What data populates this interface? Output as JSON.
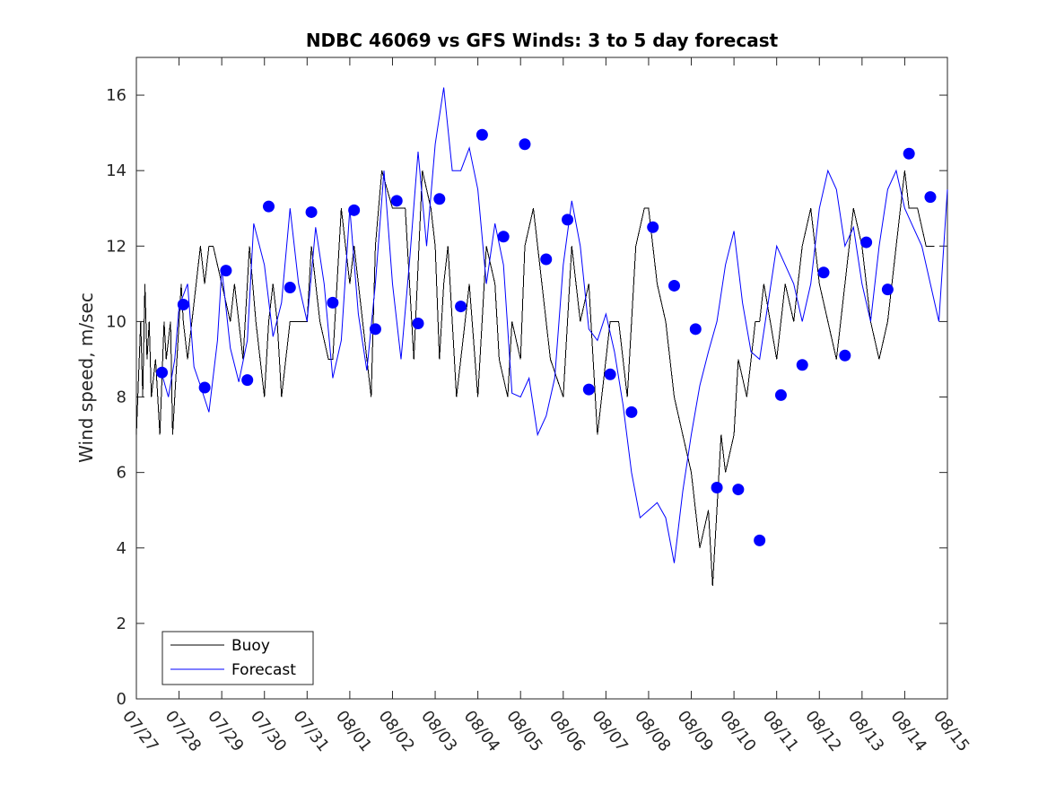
{
  "chart_data": {
    "type": "line",
    "title": "NDBC 46069 vs GFS Winds: 3 to 5 day forecast",
    "xlabel": "",
    "ylabel": "Wind speed, m/sec",
    "xlim": [
      0,
      19
    ],
    "ylim": [
      0,
      17
    ],
    "x_tick_labels": [
      "07/27",
      "07/28",
      "07/29",
      "07/30",
      "07/31",
      "08/01",
      "08/02",
      "08/03",
      "08/04",
      "08/05",
      "08/06",
      "08/07",
      "08/08",
      "08/09",
      "08/10",
      "08/11",
      "08/12",
      "08/13",
      "08/14",
      "08/15"
    ],
    "y_ticks": [
      0,
      2,
      4,
      6,
      8,
      10,
      12,
      14,
      16
    ],
    "grid": false,
    "legend_position": "bottom-left",
    "colors": {
      "buoy": "#000000",
      "forecast": "#0000ff",
      "markers": "#0000ff"
    },
    "series": [
      {
        "name": "Buoy",
        "color": "#000000",
        "x": [
          0,
          0.1,
          0.15,
          0.2,
          0.25,
          0.3,
          0.35,
          0.45,
          0.5,
          0.55,
          0.65,
          0.7,
          0.8,
          0.85,
          0.95,
          1.05,
          1.1,
          1.2,
          1.3,
          1.5,
          1.6,
          1.7,
          1.8,
          2.0,
          2.2,
          2.3,
          2.5,
          2.65,
          2.8,
          3.0,
          3.1,
          3.2,
          3.3,
          3.4,
          3.6,
          3.8,
          4.0,
          4.1,
          4.3,
          4.5,
          4.6,
          4.8,
          5.0,
          5.1,
          5.3,
          5.5,
          5.6,
          5.75,
          6.0,
          6.3,
          6.5,
          6.7,
          6.9,
          7.0,
          7.1,
          7.2,
          7.3,
          7.4,
          7.5,
          7.7,
          7.8,
          8.0,
          8.2,
          8.4,
          8.5,
          8.7,
          8.8,
          9.0,
          9.1,
          9.3,
          9.5,
          9.7,
          10.0,
          10.2,
          10.4,
          10.6,
          10.8,
          11.0,
          11.1,
          11.3,
          11.5,
          11.7,
          11.9,
          12.0,
          12.2,
          12.4,
          12.6,
          12.8,
          13.0,
          13.2,
          13.4,
          13.5,
          13.7,
          13.8,
          14.0,
          14.1,
          14.3,
          14.5,
          14.6,
          14.7,
          15.0,
          15.2,
          15.4,
          15.6,
          15.8,
          16.0,
          16.2,
          16.4,
          16.6,
          16.8,
          17.0,
          17.2,
          17.4,
          17.6,
          17.8,
          18.0,
          18.1,
          18.3,
          18.5,
          18.7
        ],
        "y": [
          7,
          10,
          8,
          11,
          9,
          10,
          8,
          9,
          8,
          7,
          10,
          9,
          10,
          7,
          9,
          11,
          10,
          9,
          10,
          12,
          11,
          12,
          12,
          11,
          10,
          11,
          9,
          12,
          10,
          8,
          10,
          11,
          10,
          8,
          10,
          10,
          10,
          12,
          10,
          9,
          9,
          13,
          11,
          12,
          10,
          8,
          12,
          14,
          13,
          13,
          9,
          14,
          13,
          12,
          9,
          11,
          12,
          10,
          8,
          10,
          11,
          8,
          12,
          11,
          9,
          8,
          10,
          9,
          12,
          13,
          11,
          9,
          8,
          12,
          10,
          11,
          7,
          9,
          10,
          10,
          8,
          12,
          13,
          13,
          11,
          10,
          8,
          7,
          6,
          4,
          5,
          3,
          7,
          6,
          7,
          9,
          8,
          10,
          10,
          11,
          9,
          11,
          10,
          12,
          13,
          11,
          10,
          9,
          11,
          13,
          12,
          10,
          9,
          10,
          12,
          14,
          13,
          13,
          12,
          12
        ]
      },
      {
        "name": "Forecast",
        "color": "#0000ff",
        "x": [
          0.6,
          0.75,
          0.9,
          1.0,
          1.2,
          1.35,
          1.5,
          1.7,
          1.9,
          2.0,
          2.2,
          2.4,
          2.6,
          2.75,
          3.0,
          3.2,
          3.4,
          3.6,
          3.8,
          4.0,
          4.2,
          4.4,
          4.6,
          4.8,
          5.0,
          5.2,
          5.4,
          5.6,
          5.8,
          6.0,
          6.2,
          6.4,
          6.6,
          6.8,
          7.0,
          7.2,
          7.4,
          7.6,
          7.8,
          8.0,
          8.2,
          8.4,
          8.6,
          8.8,
          9.0,
          9.2,
          9.4,
          9.6,
          9.8,
          10.0,
          10.2,
          10.4,
          10.6,
          10.8,
          11.0,
          11.2,
          11.4,
          11.6,
          11.8,
          12.0,
          12.2,
          12.4,
          12.6,
          12.8,
          13.0,
          13.2,
          13.4,
          13.6,
          13.8,
          14.0,
          14.2,
          14.4,
          14.6,
          14.8,
          15.0,
          15.2,
          15.4,
          15.6,
          15.8,
          16.0,
          16.2,
          16.4,
          16.6,
          16.8,
          17.0,
          17.2,
          17.4,
          17.6,
          17.8,
          18.0,
          18.2,
          18.4,
          18.6,
          18.8,
          19.0
        ],
        "y": [
          8.6,
          8.0,
          9.0,
          10.4,
          11.0,
          8.8,
          8.3,
          7.6,
          9.5,
          11.4,
          9.3,
          8.4,
          9.5,
          12.6,
          11.5,
          9.6,
          10.5,
          13.0,
          11.0,
          10.0,
          12.5,
          11.0,
          8.5,
          9.5,
          13.0,
          10.2,
          8.7,
          11.0,
          14.0,
          11.0,
          9.0,
          11.6,
          14.5,
          12.0,
          14.7,
          16.2,
          14.0,
          14.0,
          14.6,
          13.5,
          11.0,
          12.6,
          11.5,
          8.1,
          8.0,
          8.5,
          7.0,
          7.5,
          8.5,
          11.5,
          13.2,
          12.0,
          9.8,
          9.5,
          10.2,
          9.2,
          7.8,
          6.0,
          4.8,
          5.0,
          5.2,
          4.8,
          3.6,
          5.5,
          7.0,
          8.3,
          9.2,
          10.0,
          11.5,
          12.4,
          10.5,
          9.2,
          9.0,
          10.5,
          12.0,
          11.5,
          11.0,
          10.0,
          11.0,
          13.0,
          14.0,
          13.5,
          12.0,
          12.5,
          11.0,
          10.0,
          12.0,
          13.5,
          14.0,
          13.0,
          12.5,
          12.0,
          11.0,
          10.0,
          13.5
        ]
      }
    ],
    "markers": {
      "name": "GFS points",
      "x": [
        0.6,
        1.1,
        1.6,
        2.1,
        2.6,
        3.1,
        3.6,
        4.1,
        4.6,
        5.1,
        5.6,
        6.1,
        6.6,
        7.1,
        7.6,
        8.1,
        8.6,
        9.1,
        9.6,
        10.1,
        10.6,
        11.1,
        11.6,
        12.1,
        12.6,
        13.1,
        13.6,
        14.1,
        14.6,
        15.1,
        15.6,
        16.1,
        16.6,
        17.1,
        17.6,
        18.1,
        18.6
      ],
      "y": [
        8.65,
        10.45,
        8.25,
        11.35,
        8.45,
        13.05,
        10.9,
        12.9,
        10.5,
        12.95,
        9.8,
        13.2,
        9.95,
        13.25,
        10.4,
        14.95,
        12.25,
        14.7,
        11.65,
        12.7,
        8.2,
        8.6,
        7.6,
        12.5,
        10.95,
        9.8,
        5.6,
        5.55,
        4.2,
        8.05,
        8.85,
        11.3,
        9.1,
        12.1,
        10.85,
        14.45,
        13.3
      ]
    },
    "legend": {
      "entries": [
        "Buoy",
        "Forecast"
      ]
    }
  }
}
